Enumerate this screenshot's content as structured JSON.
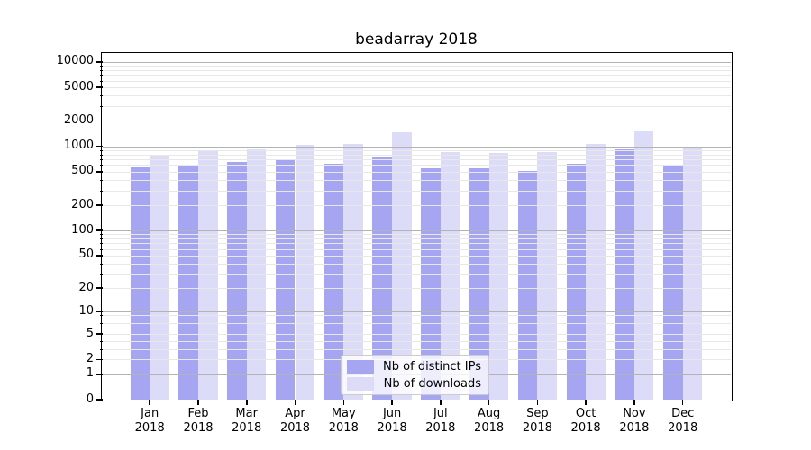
{
  "figure": {
    "title": "beadarray 2018"
  },
  "chart_data": {
    "type": "bar",
    "title": "beadarray 2018",
    "categories": [
      "Jan",
      "Feb",
      "Mar",
      "Apr",
      "May",
      "Jun",
      "Jul",
      "Aug",
      "Sep",
      "Oct",
      "Nov",
      "Dec"
    ],
    "year_label": "2018",
    "series": [
      {
        "name": "Nb of distinct IPs",
        "color": "#a5a5f2",
        "values": [
          560,
          605,
          650,
          695,
          620,
          760,
          545,
          545,
          505,
          615,
          930,
          590
        ]
      },
      {
        "name": "Nb of downloads",
        "color": "#dcdcf8",
        "values": [
          790,
          905,
          925,
          1050,
          1080,
          1460,
          860,
          835,
          850,
          1060,
          1520,
          1000
        ]
      }
    ],
    "yscale": "log10(1+v)",
    "ylim": [
      0,
      12750
    ],
    "ytick_labels": [
      0,
      1,
      2,
      5,
      10,
      20,
      50,
      100,
      200,
      500,
      1000,
      2000,
      5000,
      10000
    ],
    "grid": {
      "horizontal": true,
      "major_at": [
        1,
        10,
        100,
        1000,
        10000
      ],
      "minor_per_decade": "2-9",
      "drawn_above_bars": true
    },
    "legend": {
      "position": "lower-center-inside",
      "entries": [
        "Nb of distinct IPs",
        "Nb of downloads"
      ]
    }
  },
  "colors": {
    "bar_distinct_ips": "#a5a5f2",
    "bar_downloads": "#dcdcf8",
    "grid_major": "#b3b3b3",
    "grid_minor": "#e8e8e8",
    "spine": "#000000",
    "legend_border": "#cccccc"
  }
}
